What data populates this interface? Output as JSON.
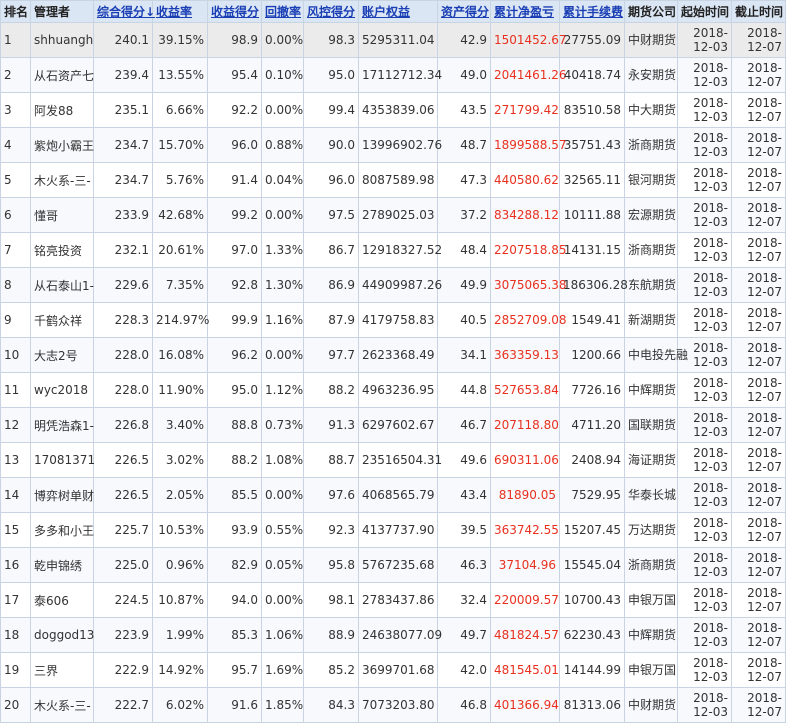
{
  "columns": [
    {
      "label": "排名",
      "sortable": false
    },
    {
      "label": "管理者",
      "sortable": false
    },
    {
      "label": "综合得分↓",
      "sortable": true
    },
    {
      "label": "收益率",
      "sortable": true
    },
    {
      "label": "收益得分",
      "sortable": true
    },
    {
      "label": "回撤率",
      "sortable": true
    },
    {
      "label": "风控得分",
      "sortable": true
    },
    {
      "label": "账户权益",
      "sortable": true
    },
    {
      "label": "资产得分",
      "sortable": true
    },
    {
      "label": "累计净盈亏",
      "sortable": true
    },
    {
      "label": "累计手续费",
      "sortable": true
    },
    {
      "label": "期货公司",
      "sortable": false
    },
    {
      "label": "起始时间",
      "sortable": false
    },
    {
      "label": "截止时间",
      "sortable": false
    }
  ],
  "rows": [
    {
      "rank": "1",
      "manager": "shhuangh",
      "score": "240.1",
      "return": "39.15%",
      "return_score": "98.9",
      "drawdown": "0.00%",
      "risk_score": "98.3",
      "equity": "5295311.04",
      "asset_score": "42.9",
      "pnl": "1501452.67",
      "fee": "27755.09",
      "firm": "中财期货",
      "start": [
        "2018-",
        "12-03"
      ],
      "end": [
        "2018-",
        "12-07"
      ]
    },
    {
      "rank": "2",
      "manager": "从石资产七",
      "score": "239.4",
      "return": "13.55%",
      "return_score": "95.4",
      "drawdown": "0.10%",
      "risk_score": "95.0",
      "equity": "17112712.34",
      "asset_score": "49.0",
      "pnl": "2041461.26",
      "fee": "40418.74",
      "firm": "永安期货",
      "start": [
        "2018-",
        "12-03"
      ],
      "end": [
        "2018-",
        "12-07"
      ]
    },
    {
      "rank": "3",
      "manager": "阿发88",
      "score": "235.1",
      "return": "6.66%",
      "return_score": "92.2",
      "drawdown": "0.00%",
      "risk_score": "99.4",
      "equity": "4353839.06",
      "asset_score": "43.5",
      "pnl": "271799.42",
      "fee": "83510.58",
      "firm": "中大期货",
      "start": [
        "2018-",
        "12-03"
      ],
      "end": [
        "2018-",
        "12-07"
      ]
    },
    {
      "rank": "4",
      "manager": "紫炮小霸王",
      "score": "234.7",
      "return": "15.70%",
      "return_score": "96.0",
      "drawdown": "0.88%",
      "risk_score": "90.0",
      "equity": "13996902.76",
      "asset_score": "48.7",
      "pnl": "1899588.57",
      "fee": "35751.43",
      "firm": "浙商期货",
      "start": [
        "2018-",
        "12-03"
      ],
      "end": [
        "2018-",
        "12-07"
      ]
    },
    {
      "rank": "5",
      "manager": "木火系-三-",
      "score": "234.7",
      "return": "5.76%",
      "return_score": "91.4",
      "drawdown": "0.04%",
      "risk_score": "96.0",
      "equity": "8087589.98",
      "asset_score": "47.3",
      "pnl": "440580.62",
      "fee": "32565.11",
      "firm": "银河期货",
      "start": [
        "2018-",
        "12-03"
      ],
      "end": [
        "2018-",
        "12-07"
      ]
    },
    {
      "rank": "6",
      "manager": "懂哥",
      "score": "233.9",
      "return": "42.68%",
      "return_score": "99.2",
      "drawdown": "0.00%",
      "risk_score": "97.5",
      "equity": "2789025.03",
      "asset_score": "37.2",
      "pnl": "834288.12",
      "fee": "10111.88",
      "firm": "宏源期货",
      "start": [
        "2018-",
        "12-03"
      ],
      "end": [
        "2018-",
        "12-07"
      ]
    },
    {
      "rank": "7",
      "manager": "铭亮投资",
      "score": "232.1",
      "return": "20.61%",
      "return_score": "97.0",
      "drawdown": "1.33%",
      "risk_score": "86.7",
      "equity": "12918327.52",
      "asset_score": "48.4",
      "pnl": "2207518.85",
      "fee": "14131.15",
      "firm": "浙商期货",
      "start": [
        "2018-",
        "12-03"
      ],
      "end": [
        "2018-",
        "12-07"
      ]
    },
    {
      "rank": "8",
      "manager": "从石泰山1-",
      "score": "229.6",
      "return": "7.35%",
      "return_score": "92.8",
      "drawdown": "1.30%",
      "risk_score": "86.9",
      "equity": "44909987.26",
      "asset_score": "49.9",
      "pnl": "3075065.38",
      "fee": "186306.28",
      "firm": "东航期货",
      "start": [
        "2018-",
        "12-03"
      ],
      "end": [
        "2018-",
        "12-07"
      ]
    },
    {
      "rank": "9",
      "manager": "千鹤众祥",
      "score": "228.3",
      "return": "214.97%",
      "return_score": "99.9",
      "drawdown": "1.16%",
      "risk_score": "87.9",
      "equity": "4179758.83",
      "asset_score": "40.5",
      "pnl": "2852709.08",
      "fee": "1549.41",
      "firm": "新湖期货",
      "start": [
        "2018-",
        "12-03"
      ],
      "end": [
        "2018-",
        "12-07"
      ]
    },
    {
      "rank": "10",
      "manager": "大志2号",
      "score": "228.0",
      "return": "16.08%",
      "return_score": "96.2",
      "drawdown": "0.00%",
      "risk_score": "97.7",
      "equity": "2623368.49",
      "asset_score": "34.1",
      "pnl": "363359.13",
      "fee": "1200.66",
      "firm": "中电投先融",
      "start": [
        "2018-",
        "12-03"
      ],
      "end": [
        "2018-",
        "12-07"
      ]
    },
    {
      "rank": "11",
      "manager": "wyc2018",
      "score": "228.0",
      "return": "11.90%",
      "return_score": "95.0",
      "drawdown": "1.12%",
      "risk_score": "88.2",
      "equity": "4963236.95",
      "asset_score": "44.8",
      "pnl": "527653.84",
      "fee": "7726.16",
      "firm": "中辉期货",
      "start": [
        "2018-",
        "12-03"
      ],
      "end": [
        "2018-",
        "12-07"
      ]
    },
    {
      "rank": "12",
      "manager": "明凭浩森1-",
      "score": "226.8",
      "return": "3.40%",
      "return_score": "88.8",
      "drawdown": "0.73%",
      "risk_score": "91.3",
      "equity": "6297602.67",
      "asset_score": "46.7",
      "pnl": "207118.80",
      "fee": "4711.20",
      "firm": "国联期货",
      "start": [
        "2018-",
        "12-03"
      ],
      "end": [
        "2018-",
        "12-07"
      ]
    },
    {
      "rank": "13",
      "manager": "17081371",
      "score": "226.5",
      "return": "3.02%",
      "return_score": "88.2",
      "drawdown": "1.08%",
      "risk_score": "88.7",
      "equity": "23516504.31",
      "asset_score": "49.6",
      "pnl": "690311.06",
      "fee": "2408.94",
      "firm": "海证期货",
      "start": [
        "2018-",
        "12-03"
      ],
      "end": [
        "2018-",
        "12-07"
      ]
    },
    {
      "rank": "14",
      "manager": "博弈树单财",
      "score": "226.5",
      "return": "2.05%",
      "return_score": "85.5",
      "drawdown": "0.00%",
      "risk_score": "97.6",
      "equity": "4068565.79",
      "asset_score": "43.4",
      "pnl": "81890.05",
      "fee": "7529.95",
      "firm": "华泰长城",
      "start": [
        "2018-",
        "12-03"
      ],
      "end": [
        "2018-",
        "12-07"
      ]
    },
    {
      "rank": "15",
      "manager": "多多和小王",
      "score": "225.7",
      "return": "10.53%",
      "return_score": "93.9",
      "drawdown": "0.55%",
      "risk_score": "92.3",
      "equity": "4137737.90",
      "asset_score": "39.5",
      "pnl": "363742.55",
      "fee": "15207.45",
      "firm": "万达期货",
      "start": [
        "2018-",
        "12-03"
      ],
      "end": [
        "2018-",
        "12-07"
      ]
    },
    {
      "rank": "16",
      "manager": "乾申锦绣",
      "score": "225.0",
      "return": "0.96%",
      "return_score": "82.9",
      "drawdown": "0.05%",
      "risk_score": "95.8",
      "equity": "5767235.68",
      "asset_score": "46.3",
      "pnl": "37104.96",
      "fee": "15545.04",
      "firm": "浙商期货",
      "start": [
        "2018-",
        "12-03"
      ],
      "end": [
        "2018-",
        "12-07"
      ]
    },
    {
      "rank": "17",
      "manager": "泰606",
      "score": "224.5",
      "return": "10.87%",
      "return_score": "94.0",
      "drawdown": "0.00%",
      "risk_score": "98.1",
      "equity": "2783437.86",
      "asset_score": "32.4",
      "pnl": "220009.57",
      "fee": "10700.43",
      "firm": "申银万国",
      "start": [
        "2018-",
        "12-03"
      ],
      "end": [
        "2018-",
        "12-07"
      ]
    },
    {
      "rank": "18",
      "manager": "doggod13",
      "score": "223.9",
      "return": "1.99%",
      "return_score": "85.3",
      "drawdown": "1.06%",
      "risk_score": "88.9",
      "equity": "24638077.09",
      "asset_score": "49.7",
      "pnl": "481824.57",
      "fee": "62230.43",
      "firm": "中辉期货",
      "start": [
        "2018-",
        "12-03"
      ],
      "end": [
        "2018-",
        "12-07"
      ]
    },
    {
      "rank": "19",
      "manager": "三界",
      "score": "222.9",
      "return": "14.92%",
      "return_score": "95.7",
      "drawdown": "1.69%",
      "risk_score": "85.2",
      "equity": "3699701.68",
      "asset_score": "42.0",
      "pnl": "481545.01",
      "fee": "14144.99",
      "firm": "申银万国",
      "start": [
        "2018-",
        "12-03"
      ],
      "end": [
        "2018-",
        "12-07"
      ]
    },
    {
      "rank": "20",
      "manager": "木火系-三-",
      "score": "222.7",
      "return": "6.02%",
      "return_score": "91.6",
      "drawdown": "1.85%",
      "risk_score": "84.3",
      "equity": "7073203.80",
      "asset_score": "46.8",
      "pnl": "401366.94",
      "fee": "81313.06",
      "firm": "中财期货",
      "start": [
        "2018-",
        "12-03"
      ],
      "end": [
        "2018-",
        "12-07"
      ]
    }
  ],
  "selected_row": 0,
  "colors": {
    "header_bg": "#dbe6f4",
    "sort_link": "#1a3fb5",
    "pnl_text": "#e8301f",
    "border": "#c9d4e3",
    "selected_bg": "#ebebeb"
  }
}
